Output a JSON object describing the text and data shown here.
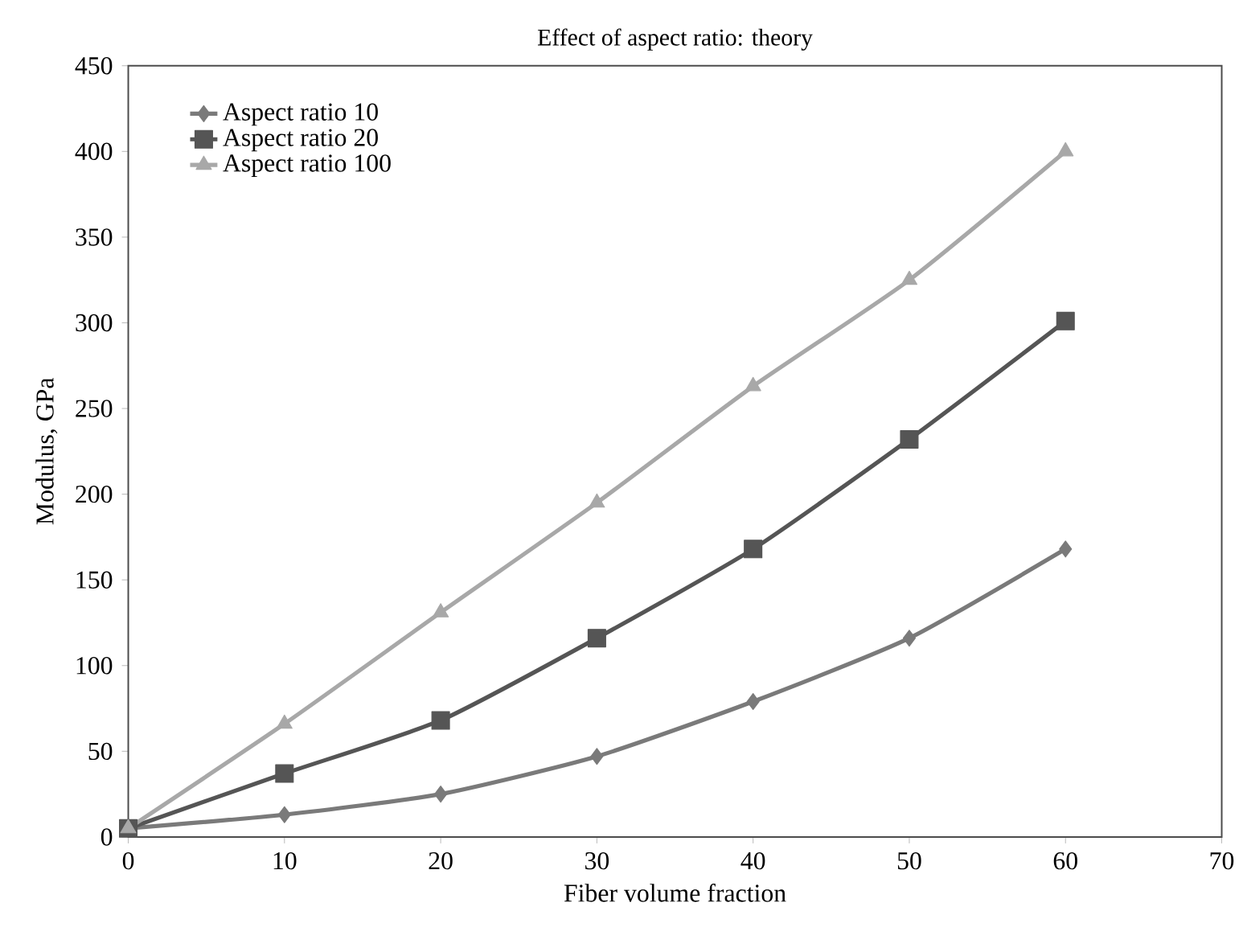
{
  "chart_data": {
    "type": "line",
    "title": "Effect of aspect ratio: theory",
    "xlabel": "Fiber volume fraction",
    "ylabel": "Modulus, GPa",
    "x": [
      0,
      10,
      20,
      30,
      40,
      50,
      60
    ],
    "series": [
      {
        "name": "Aspect ratio 10",
        "color": "#7a7a7a",
        "marker": "diamond",
        "values": [
          5,
          13,
          25,
          47,
          79,
          116,
          168
        ]
      },
      {
        "name": "Aspect ratio 20",
        "color": "#555555",
        "marker": "square",
        "values": [
          5,
          37,
          68,
          116,
          168,
          232,
          301
        ]
      },
      {
        "name": "Aspect ratio 100",
        "color": "#a8a8a8",
        "marker": "triangle",
        "values": [
          5,
          66,
          131,
          195,
          263,
          325,
          400
        ]
      }
    ],
    "xlim": [
      0,
      70
    ],
    "xticks": [
      0,
      10,
      20,
      30,
      40,
      50,
      60,
      70
    ],
    "ylim": [
      0,
      450
    ],
    "yticks": [
      0,
      50,
      100,
      150,
      200,
      250,
      300,
      350,
      400,
      450
    ],
    "legend": "top left",
    "grid": false
  }
}
